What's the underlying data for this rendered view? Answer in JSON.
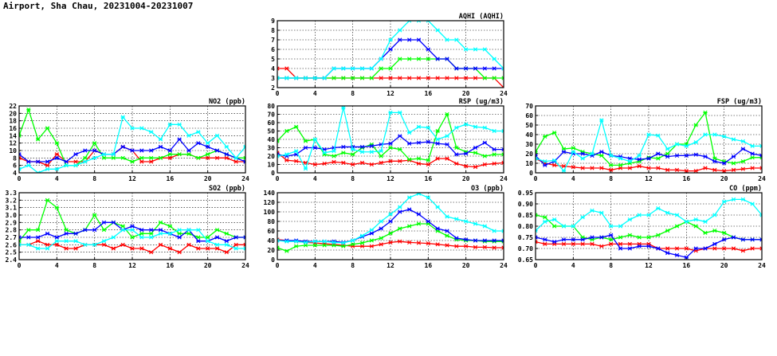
{
  "title": "Airport, Sha Chau, 20231004-20231007",
  "colors": [
    "#ff0000",
    "#00ff00",
    "#0000ff",
    "#00ffff"
  ],
  "chart_data": [
    {
      "id": "aqhi",
      "type": "line",
      "title": "AQHI (AQHI)",
      "xlim": [
        0,
        24
      ],
      "ylim": [
        2,
        9
      ],
      "xticks": [
        "0",
        "4",
        "8",
        "12",
        "16",
        "20",
        "24"
      ],
      "yticks": [
        "2",
        "3",
        "4",
        "5",
        "6",
        "7",
        "8",
        "9"
      ],
      "grid": true,
      "x": [
        0,
        1,
        2,
        3,
        4,
        5,
        6,
        7,
        8,
        9,
        10,
        11,
        12,
        13,
        14,
        15,
        16,
        17,
        18,
        19,
        20,
        21,
        22,
        23,
        24
      ],
      "series": [
        {
          "color": "#ff0000",
          "values": [
            4,
            4,
            3,
            3,
            3,
            3,
            3,
            3,
            3,
            3,
            3,
            3,
            3,
            3,
            3,
            3,
            3,
            3,
            3,
            3,
            3,
            3,
            3,
            3,
            2
          ]
        },
        {
          "color": "#00ff00",
          "values": [
            3,
            3,
            3,
            3,
            3,
            3,
            3,
            3,
            3,
            3,
            3,
            4,
            4,
            5,
            5,
            5,
            5,
            5,
            5,
            4,
            4,
            4,
            3,
            3,
            3
          ]
        },
        {
          "color": "#0000ff",
          "values": [
            3,
            3,
            3,
            3,
            3,
            3,
            4,
            4,
            4,
            4,
            4,
            5,
            6,
            7,
            7,
            7,
            6,
            5,
            5,
            4,
            4,
            4,
            4,
            4,
            4
          ]
        },
        {
          "color": "#00ffff",
          "values": [
            3,
            3,
            3,
            3,
            3,
            3,
            4,
            4,
            4,
            4,
            4,
            5,
            7,
            8,
            9,
            9,
            9,
            8,
            7,
            7,
            6,
            6,
            6,
            5,
            4
          ]
        }
      ]
    },
    {
      "id": "no2",
      "type": "line",
      "title": "NO2 (ppb)",
      "xlim": [
        0,
        24
      ],
      "ylim": [
        4,
        22
      ],
      "xticks": [
        "0",
        "4",
        "8",
        "12",
        "16",
        "20",
        "24"
      ],
      "yticks": [
        "4",
        "6",
        "8",
        "10",
        "12",
        "14",
        "16",
        "18",
        "20",
        "22"
      ],
      "grid": true,
      "x": [
        0,
        1,
        2,
        3,
        4,
        5,
        6,
        7,
        8,
        9,
        10,
        11,
        12,
        13,
        14,
        15,
        16,
        17,
        18,
        19,
        20,
        21,
        22,
        23,
        24
      ],
      "series": [
        {
          "color": "#ff0000",
          "values": [
            8,
            7,
            7,
            6,
            9,
            7,
            7,
            7,
            10,
            9,
            9,
            11,
            10,
            7,
            7,
            8,
            8,
            9,
            9,
            8,
            8,
            8,
            8,
            7,
            7
          ]
        },
        {
          "color": "#00ff00",
          "values": [
            14,
            21,
            13,
            16,
            12,
            6,
            6,
            8,
            12,
            8,
            8,
            8,
            7,
            8,
            8,
            8,
            9,
            9,
            9,
            8,
            9,
            10,
            9,
            8,
            8
          ]
        },
        {
          "color": "#0000ff",
          "values": [
            9,
            7,
            7,
            7,
            8,
            7,
            9,
            10,
            10,
            9,
            9,
            11,
            10,
            10,
            10,
            11,
            10,
            13,
            10,
            12,
            11,
            10,
            9,
            8,
            7
          ]
        },
        {
          "color": "#00ffff",
          "values": [
            5,
            6,
            4,
            5,
            5,
            6,
            6,
            7,
            8,
            9,
            9,
            19,
            16,
            16,
            15,
            13,
            17,
            17,
            14,
            15,
            12,
            14,
            11,
            8,
            11
          ]
        }
      ]
    },
    {
      "id": "rsp",
      "type": "line",
      "title": "RSP (ug/m3)",
      "xlim": [
        0,
        24
      ],
      "ylim": [
        0,
        80
      ],
      "xticks": [
        "0",
        "4",
        "8",
        "12",
        "16",
        "20",
        "24"
      ],
      "yticks": [
        "0",
        "10",
        "20",
        "30",
        "40",
        "50",
        "60",
        "70",
        "80"
      ],
      "grid": true,
      "x": [
        0,
        1,
        2,
        3,
        4,
        5,
        6,
        7,
        8,
        9,
        10,
        11,
        12,
        13,
        14,
        15,
        16,
        17,
        18,
        19,
        20,
        21,
        22,
        23,
        24
      ],
      "series": [
        {
          "color": "#ff0000",
          "values": [
            24,
            15,
            14,
            12,
            10,
            11,
            13,
            12,
            10,
            12,
            10,
            12,
            14,
            14,
            15,
            11,
            10,
            17,
            17,
            11,
            8,
            7,
            10,
            11,
            12
          ]
        },
        {
          "color": "#00ff00",
          "values": [
            38,
            50,
            55,
            38,
            40,
            22,
            20,
            24,
            22,
            30,
            34,
            20,
            30,
            28,
            16,
            17,
            15,
            50,
            70,
            30,
            25,
            24,
            20,
            22,
            22
          ]
        },
        {
          "color": "#0000ff",
          "values": [
            22,
            20,
            22,
            30,
            30,
            28,
            30,
            31,
            31,
            31,
            32,
            34,
            35,
            44,
            35,
            36,
            37,
            35,
            34,
            22,
            23,
            30,
            36,
            28,
            28
          ]
        },
        {
          "color": "#00ffff",
          "values": [
            20,
            22,
            26,
            5,
            40,
            24,
            26,
            78,
            28,
            25,
            25,
            26,
            72,
            72,
            48,
            55,
            54,
            40,
            44,
            54,
            58,
            55,
            54,
            50,
            50
          ]
        }
      ]
    },
    {
      "id": "fsp",
      "type": "line",
      "title": "FSP (ug/m3)",
      "xlim": [
        0,
        24
      ],
      "ylim": [
        0,
        70
      ],
      "xticks": [
        "0",
        "4",
        "8",
        "12",
        "16",
        "20",
        "24"
      ],
      "yticks": [
        "0",
        "10",
        "20",
        "30",
        "40",
        "50",
        "60",
        "70"
      ],
      "grid": true,
      "x": [
        0,
        1,
        2,
        3,
        4,
        5,
        6,
        7,
        8,
        9,
        10,
        11,
        12,
        13,
        14,
        15,
        16,
        17,
        18,
        19,
        20,
        21,
        22,
        23,
        24
      ],
      "series": [
        {
          "color": "#ff0000",
          "values": [
            15,
            10,
            8,
            7,
            6,
            5,
            5,
            5,
            3,
            5,
            5,
            7,
            5,
            5,
            3,
            3,
            2,
            2,
            5,
            3,
            2,
            3,
            4,
            5,
            5
          ]
        },
        {
          "color": "#00ff00",
          "values": [
            22,
            38,
            42,
            25,
            26,
            22,
            20,
            18,
            8,
            8,
            10,
            12,
            16,
            15,
            20,
            30,
            30,
            50,
            63,
            15,
            12,
            10,
            12,
            16,
            16
          ]
        },
        {
          "color": "#0000ff",
          "values": [
            18,
            8,
            12,
            22,
            20,
            20,
            18,
            22,
            18,
            17,
            15,
            14,
            15,
            20,
            17,
            18,
            18,
            19,
            17,
            12,
            10,
            17,
            25,
            20,
            18
          ]
        },
        {
          "color": "#00ffff",
          "values": [
            15,
            12,
            13,
            2,
            22,
            15,
            20,
            55,
            18,
            15,
            12,
            18,
            40,
            39,
            25,
            30,
            28,
            32,
            40,
            40,
            38,
            35,
            33,
            28,
            28
          ]
        }
      ]
    },
    {
      "id": "so2",
      "type": "line",
      "title": "SO2 (ppb)",
      "xlim": [
        0,
        24
      ],
      "ylim": [
        2.4,
        3.3
      ],
      "xticks": [
        "0",
        "4",
        "8",
        "12",
        "16",
        "20",
        "24"
      ],
      "yticks": [
        "2.4",
        "2.5",
        "2.6",
        "2.7",
        "2.8",
        "2.9",
        "3.0",
        "3.1",
        "3.2",
        "3.3"
      ],
      "grid": true,
      "x": [
        0,
        1,
        2,
        3,
        4,
        5,
        6,
        7,
        8,
        9,
        10,
        11,
        12,
        13,
        14,
        15,
        16,
        17,
        18,
        19,
        20,
        21,
        22,
        23,
        24
      ],
      "series": [
        {
          "color": "#ff0000",
          "values": [
            2.6,
            2.6,
            2.65,
            2.6,
            2.6,
            2.55,
            2.55,
            2.6,
            2.6,
            2.6,
            2.55,
            2.6,
            2.55,
            2.55,
            2.5,
            2.6,
            2.55,
            2.5,
            2.6,
            2.55,
            2.55,
            2.55,
            2.5,
            2.6,
            2.6
          ]
        },
        {
          "color": "#00ff00",
          "values": [
            2.65,
            2.8,
            2.8,
            3.2,
            3.1,
            2.8,
            2.75,
            2.8,
            3.0,
            2.8,
            2.9,
            2.85,
            2.7,
            2.75,
            2.75,
            2.9,
            2.85,
            2.75,
            2.75,
            2.7,
            2.7,
            2.8,
            2.75,
            2.7,
            2.7
          ]
        },
        {
          "color": "#0000ff",
          "values": [
            2.7,
            2.7,
            2.7,
            2.75,
            2.7,
            2.75,
            2.75,
            2.8,
            2.8,
            2.9,
            2.9,
            2.8,
            2.85,
            2.8,
            2.8,
            2.8,
            2.75,
            2.7,
            2.8,
            2.65,
            2.65,
            2.7,
            2.65,
            2.7,
            2.7
          ]
        },
        {
          "color": "#00ffff",
          "values": [
            2.6,
            2.6,
            2.55,
            2.55,
            2.65,
            2.65,
            2.65,
            2.6,
            2.6,
            2.65,
            2.7,
            2.8,
            2.8,
            2.7,
            2.7,
            2.75,
            2.75,
            2.8,
            2.8,
            2.8,
            2.65,
            2.6,
            2.6,
            2.55,
            2.55
          ]
        }
      ]
    },
    {
      "id": "o3",
      "type": "line",
      "title": "O3 (ppb)",
      "xlim": [
        0,
        24
      ],
      "ylim": [
        0,
        140
      ],
      "xticks": [
        "0",
        "4",
        "8",
        "12",
        "16",
        "20",
        "24"
      ],
      "yticks": [
        "0",
        "20",
        "40",
        "60",
        "80",
        "100",
        "120",
        "140"
      ],
      "grid": true,
      "x": [
        0,
        1,
        2,
        3,
        4,
        5,
        6,
        7,
        8,
        9,
        10,
        11,
        12,
        13,
        14,
        15,
        16,
        17,
        18,
        19,
        20,
        21,
        22,
        23,
        24
      ],
      "series": [
        {
          "color": "#ff0000",
          "values": [
            42,
            40,
            38,
            36,
            35,
            33,
            32,
            30,
            28,
            28,
            28,
            32,
            36,
            38,
            36,
            35,
            34,
            32,
            30,
            28,
            28,
            26,
            26,
            25,
            25
          ]
        },
        {
          "color": "#00ff00",
          "values": [
            25,
            18,
            28,
            30,
            30,
            30,
            30,
            28,
            32,
            35,
            40,
            45,
            55,
            65,
            70,
            75,
            75,
            60,
            50,
            42,
            40,
            40,
            38,
            38,
            38
          ]
        },
        {
          "color": "#0000ff",
          "values": [
            40,
            40,
            40,
            38,
            38,
            38,
            38,
            36,
            40,
            48,
            55,
            65,
            80,
            100,
            105,
            95,
            80,
            65,
            60,
            45,
            42,
            40,
            40,
            40,
            40
          ]
        },
        {
          "color": "#00ffff",
          "values": [
            40,
            38,
            38,
            36,
            38,
            38,
            36,
            35,
            40,
            50,
            62,
            80,
            95,
            110,
            130,
            138,
            130,
            110,
            90,
            85,
            80,
            75,
            70,
            60,
            60
          ]
        }
      ]
    },
    {
      "id": "co",
      "type": "line",
      "title": "CO (ppm)",
      "xlim": [
        0,
        24
      ],
      "ylim": [
        0.65,
        0.95
      ],
      "xticks": [
        "0",
        "4",
        "8",
        "12",
        "16",
        "20",
        "24"
      ],
      "yticks": [
        "0.65",
        "0.70",
        "0.75",
        "0.80",
        "0.85",
        "0.90",
        "0.95"
      ],
      "grid": true,
      "x": [
        0,
        1,
        2,
        3,
        4,
        5,
        6,
        7,
        8,
        9,
        10,
        11,
        12,
        13,
        14,
        15,
        16,
        17,
        18,
        19,
        20,
        21,
        22,
        23,
        24
      ],
      "series": [
        {
          "color": "#ff0000",
          "values": [
            0.73,
            0.72,
            0.72,
            0.72,
            0.72,
            0.72,
            0.72,
            0.71,
            0.72,
            0.72,
            0.72,
            0.72,
            0.72,
            0.7,
            0.7,
            0.7,
            0.7,
            0.69,
            0.7,
            0.7,
            0.7,
            0.7,
            0.69,
            0.7,
            0.7
          ]
        },
        {
          "color": "#00ff00",
          "values": [
            0.85,
            0.84,
            0.8,
            0.8,
            0.8,
            0.75,
            0.74,
            0.75,
            0.74,
            0.75,
            0.76,
            0.75,
            0.75,
            0.76,
            0.78,
            0.8,
            0.82,
            0.8,
            0.77,
            0.78,
            0.77,
            0.75,
            0.74,
            0.74,
            0.74
          ]
        },
        {
          "color": "#0000ff",
          "values": [
            0.75,
            0.74,
            0.73,
            0.74,
            0.74,
            0.74,
            0.75,
            0.75,
            0.76,
            0.7,
            0.7,
            0.71,
            0.71,
            0.7,
            0.68,
            0.67,
            0.66,
            0.7,
            0.7,
            0.72,
            0.74,
            0.75,
            0.74,
            0.74,
            0.74
          ]
        },
        {
          "color": "#00ffff",
          "values": [
            0.78,
            0.82,
            0.83,
            0.8,
            0.8,
            0.84,
            0.87,
            0.86,
            0.8,
            0.8,
            0.83,
            0.85,
            0.85,
            0.88,
            0.86,
            0.85,
            0.82,
            0.83,
            0.82,
            0.85,
            0.91,
            0.92,
            0.92,
            0.9,
            0.85
          ]
        }
      ]
    }
  ]
}
